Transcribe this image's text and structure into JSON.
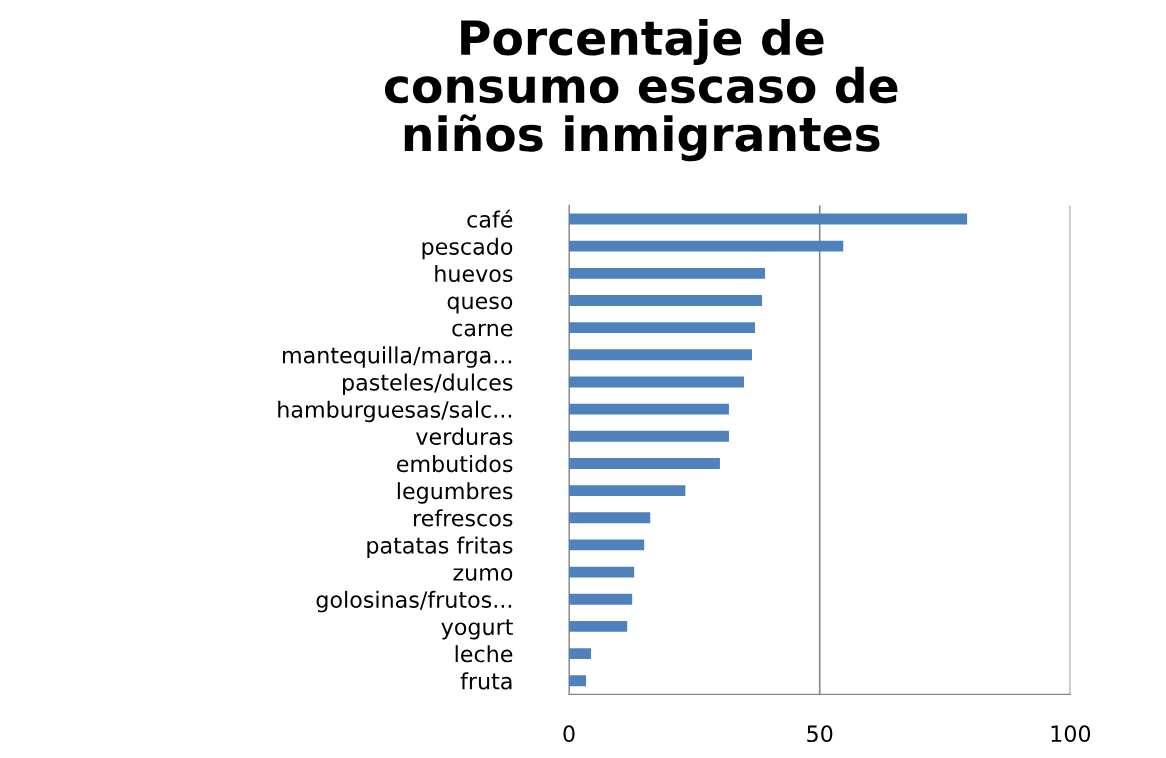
{
  "chart_data": {
    "type": "bar",
    "orientation": "horizontal",
    "title": "Porcentaje de\nconsumo escaso de\nniños inmigrantes",
    "categories": [
      "café",
      "pescado",
      "huevos",
      "queso",
      "carne",
      "mantequilla/marga...",
      "pasteles/dulces",
      "hamburguesas/salc...",
      "verduras",
      "embutidos",
      "legumbres",
      "refrescos",
      "patatas fritas",
      "zumo",
      "golosinas/frutos...",
      "yogurt",
      "leche",
      "fruta"
    ],
    "values": [
      79.4,
      54.7,
      39.1,
      38.5,
      37.1,
      36.5,
      34.9,
      31.9,
      31.9,
      30.1,
      23.2,
      16.2,
      15.0,
      13.0,
      12.6,
      11.6,
      4.4,
      3.4
    ],
    "color": "#4f81bd",
    "xlim": [
      0,
      100
    ],
    "xticks": [
      0,
      50,
      100
    ],
    "grid": "x"
  }
}
